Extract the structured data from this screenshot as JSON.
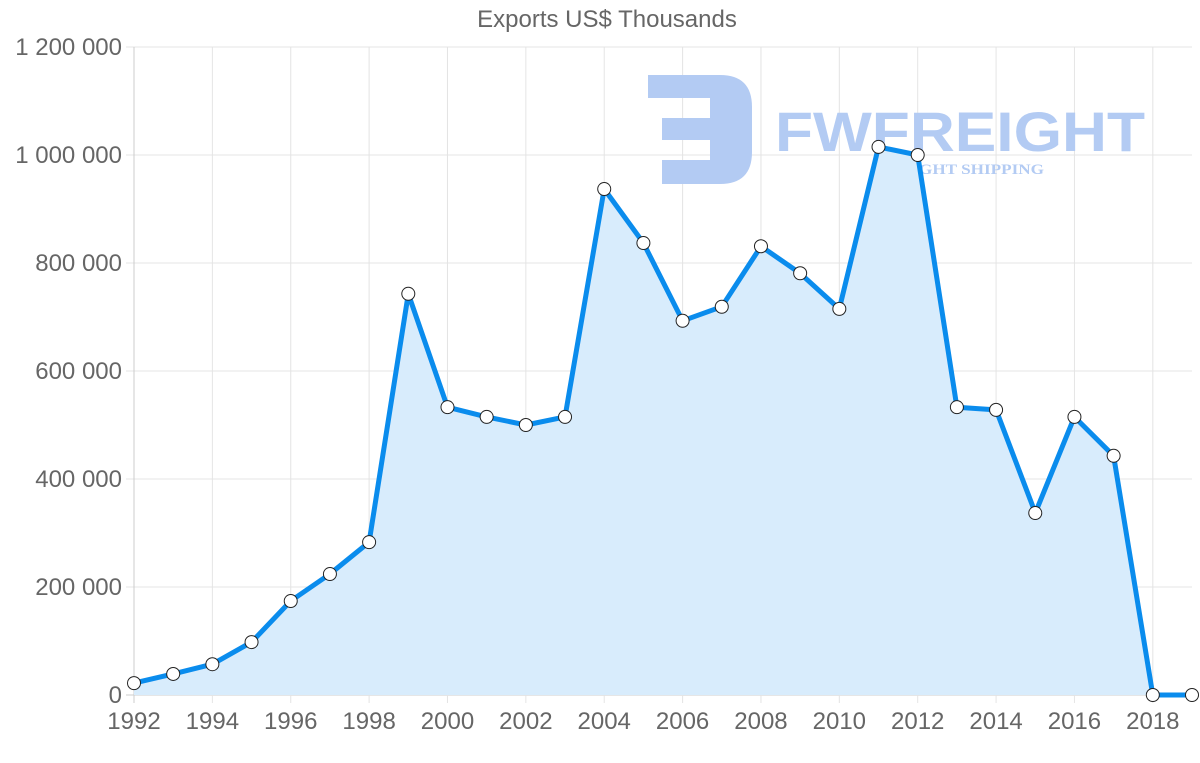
{
  "chart_data": {
    "type": "area",
    "title": "Exports US$ Thousands",
    "xlabel": "",
    "ylabel": "",
    "ylim": [
      0,
      1200000
    ],
    "xlim": [
      1992,
      2019
    ],
    "grid": true,
    "legend": "none",
    "x_tick_labels": [
      "1992",
      "1994",
      "1996",
      "1998",
      "2000",
      "2002",
      "2004",
      "2006",
      "2008",
      "2010",
      "2012",
      "2014",
      "2016",
      "2018"
    ],
    "y_tick_labels": [
      "0",
      "200 000",
      "400 000",
      "600 000",
      "800 000",
      "1 000 000",
      "1 200 000"
    ],
    "y_ticks": [
      0,
      200000,
      400000,
      600000,
      800000,
      1000000,
      1200000
    ],
    "x": [
      1992,
      1993,
      1994,
      1995,
      1996,
      1997,
      1998,
      1999,
      2000,
      2001,
      2002,
      2003,
      2004,
      2005,
      2006,
      2007,
      2008,
      2009,
      2010,
      2011,
      2012,
      2013,
      2014,
      2015,
      2016,
      2017,
      2018,
      2019
    ],
    "series": [
      {
        "name": "Exports US$ Thousands",
        "values": [
          22000,
          39000,
          57000,
          98000,
          174000,
          224000,
          283000,
          743000,
          533000,
          515000,
          500000,
          515000,
          937000,
          837000,
          693000,
          719000,
          831000,
          781000,
          715000,
          1015000,
          1000000,
          533000,
          528000,
          337000,
          515000,
          443000,
          0,
          0
        ],
        "line_color": "#0a8ced",
        "fill_color": "#d8ecfc"
      }
    ]
  },
  "watermark": {
    "brand": "FWFREIGHT",
    "tagline": "FREIGHT SHIPPING",
    "color": "#b3cbf3"
  },
  "colors": {
    "grid": "#e4e4e4",
    "axis": "#cccccc",
    "text": "#666666",
    "point_fill": "#ffffff",
    "point_stroke": "#222222"
  }
}
